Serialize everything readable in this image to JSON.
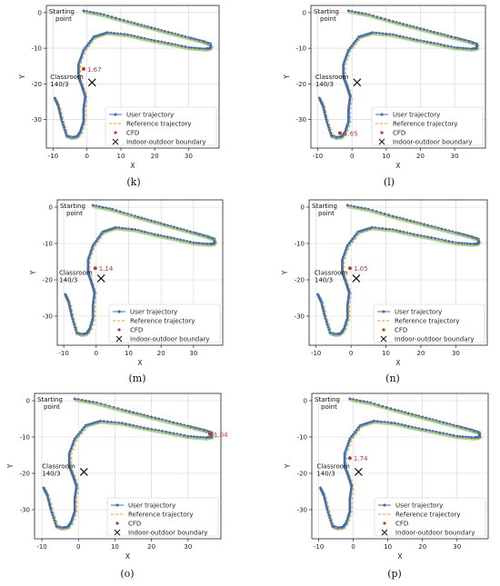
{
  "colors": {
    "user": "#3f6fb2",
    "reference": "#f0a020",
    "boundary_band": "#90d08a",
    "cfd": "#c0392b",
    "grid": "#d3d3d3"
  },
  "chart_data": [
    {
      "panel": "(k)",
      "type": "scatter",
      "xlabel": "X",
      "ylabel": "Y",
      "xlim": [
        -12,
        39
      ],
      "ylim": [
        -38,
        2
      ],
      "xticks": [
        -10,
        0,
        10,
        20,
        30
      ],
      "yticks": [
        0,
        -10,
        -20,
        -30
      ],
      "grid": true,
      "legend_position": "lower-right",
      "legend": [
        "User trajectory",
        "Reference trajectory",
        "CFD",
        "Indoor-outdoor boundary"
      ],
      "annotations": {
        "start": "Starting\npoint",
        "classroom": "Classroom\n140/3"
      },
      "cfd": {
        "x": -1.0,
        "y": -15.8,
        "label": "1.67"
      },
      "boundary": {
        "x": 1.5,
        "y": -19.6
      }
    },
    {
      "panel": "(l)",
      "type": "scatter",
      "xlabel": "X",
      "ylabel": "Y",
      "xlim": [
        -12,
        39
      ],
      "ylim": [
        -38,
        2
      ],
      "xticks": [
        -10,
        0,
        10,
        20,
        30
      ],
      "yticks": [
        0,
        -10,
        -20,
        -30
      ],
      "grid": true,
      "legend_position": "lower-right",
      "legend": [
        "User trajectory",
        "Reference trajectory",
        "CFD",
        "Indoor-outdoor boundary"
      ],
      "annotations": {
        "start": "Starting\npoint",
        "classroom": "Classroom\n140/3"
      },
      "cfd": {
        "x": -3.5,
        "y": -33.8,
        "label": "1.65"
      },
      "boundary": {
        "x": 1.5,
        "y": -19.6
      }
    },
    {
      "panel": "(m)",
      "type": "scatter",
      "xlabel": "X",
      "ylabel": "Y",
      "xlim": [
        -12,
        39
      ],
      "ylim": [
        -38,
        2
      ],
      "xticks": [
        -10,
        0,
        10,
        20,
        30
      ],
      "yticks": [
        0,
        -10,
        -20,
        -30
      ],
      "grid": true,
      "legend_position": "lower-right",
      "legend": [
        "User trajectory",
        "Reference trajectory",
        "CFD",
        "Indoor-outdoor boundary"
      ],
      "annotations": {
        "start": "Starting\npoint",
        "classroom": "Classroom\n140/3"
      },
      "cfd": {
        "x": -0.3,
        "y": -16.8,
        "label": "1.14"
      },
      "boundary": {
        "x": 1.5,
        "y": -19.6
      }
    },
    {
      "panel": "(n)",
      "type": "scatter",
      "xlabel": "X",
      "ylabel": "Y",
      "xlim": [
        -12,
        39
      ],
      "ylim": [
        -38,
        2
      ],
      "xticks": [
        -10,
        0,
        10,
        20,
        30
      ],
      "yticks": [
        0,
        -10,
        -20,
        -30
      ],
      "grid": true,
      "legend_position": "lower-right",
      "legend": [
        "User trajectory",
        "Reference trajectory",
        "CFD",
        "Indoor-outdoor boundary"
      ],
      "annotations": {
        "start": "Starting\npoint",
        "classroom": "Classroom\n140/3"
      },
      "cfd": {
        "x": -0.3,
        "y": -16.8,
        "label": "1.05"
      },
      "boundary": {
        "x": 1.5,
        "y": -19.6
      }
    },
    {
      "panel": "(o)",
      "type": "scatter",
      "xlabel": "X",
      "ylabel": "Y",
      "xlim": [
        -12,
        39
      ],
      "ylim": [
        -38,
        2
      ],
      "xticks": [
        -10,
        0,
        10,
        20,
        30
      ],
      "yticks": [
        0,
        -10,
        -20,
        -30
      ],
      "grid": true,
      "legend_position": "lower-right",
      "legend": [
        "User trajectory",
        "Reference trajectory",
        "CFD",
        "Indoor-outdoor boundary"
      ],
      "annotations": {
        "start": "Starting\npoint",
        "classroom": "Classroom\n140/3"
      },
      "cfd": {
        "x": 36.0,
        "y": -9.2,
        "label": "1.04"
      },
      "boundary": {
        "x": 1.5,
        "y": -19.6
      }
    },
    {
      "panel": "(p)",
      "type": "scatter",
      "xlabel": "X",
      "ylabel": "Y",
      "xlim": [
        -12,
        39
      ],
      "ylim": [
        -38,
        2
      ],
      "xticks": [
        -10,
        0,
        10,
        20,
        30
      ],
      "yticks": [
        0,
        -10,
        -20,
        -30
      ],
      "grid": true,
      "legend_position": "lower-right",
      "legend": [
        "User trajectory",
        "Reference trajectory",
        "CFD",
        "Indoor-outdoor boundary"
      ],
      "annotations": {
        "start": "Starting\npoint",
        "classroom": "Classroom\n140/3"
      },
      "cfd": {
        "x": -1.0,
        "y": -15.8,
        "label": "1.74"
      },
      "boundary": {
        "x": 1.5,
        "y": -19.6
      }
    }
  ],
  "trajectory": {
    "x": [
      -1,
      5,
      12,
      18,
      24,
      30,
      34,
      36.5,
      36.5,
      35,
      30,
      24,
      18,
      12,
      6,
      2,
      -1,
      -2.5,
      -2.5,
      -1.5,
      -0.5,
      -1,
      -1,
      -2,
      -3,
      -4.5,
      -6,
      -7.5,
      -8.5,
      -9.5
    ],
    "y": [
      0.5,
      -0.6,
      -2.5,
      -4,
      -5.5,
      -7,
      -8,
      -8.8,
      -10,
      -10.2,
      -9.8,
      -8.6,
      -7.5,
      -6.2,
      -5.6,
      -6.8,
      -10.5,
      -14.5,
      -18,
      -20.5,
      -23.5,
      -27,
      -30.5,
      -33.5,
      -34.8,
      -35,
      -34.5,
      -30,
      -26,
      -24
    ]
  }
}
